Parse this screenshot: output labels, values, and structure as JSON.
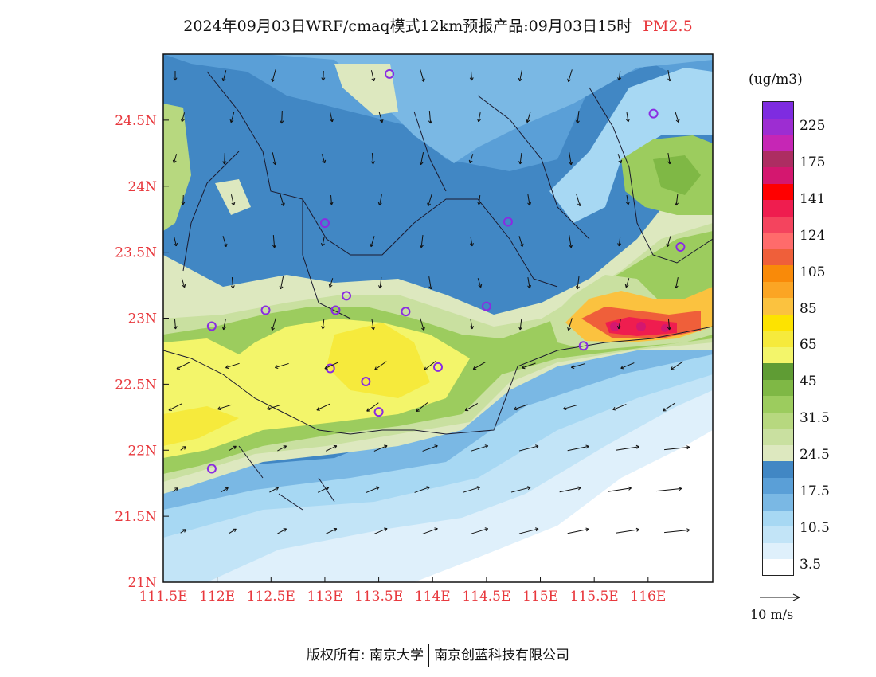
{
  "title": {
    "text": "2024年09月03日WRF/cmaq模式12km预报产品:09月03日15时",
    "species": "PM2.5"
  },
  "map": {
    "lon_range": [
      111.5,
      116.6
    ],
    "lat_range": [
      21.0,
      25.0
    ],
    "x_ticks": [
      "111.5E",
      "112E",
      "112.5E",
      "113E",
      "113.5E",
      "114E",
      "114.5E",
      "115E",
      "115.5E",
      "116E"
    ],
    "y_ticks": [
      "21N",
      "21.5N",
      "22N",
      "22.5N",
      "23N",
      "23.5N",
      "24N",
      "24.5N"
    ],
    "tick_color": "#e8383d",
    "stations": [
      {
        "lon": 113.6,
        "lat": 24.85
      },
      {
        "lon": 116.05,
        "lat": 24.55
      },
      {
        "lon": 113.0,
        "lat": 23.72
      },
      {
        "lon": 114.7,
        "lat": 23.73
      },
      {
        "lon": 116.3,
        "lat": 23.54
      },
      {
        "lon": 113.2,
        "lat": 23.17
      },
      {
        "lon": 112.45,
        "lat": 23.06
      },
      {
        "lon": 113.1,
        "lat": 23.06
      },
      {
        "lon": 113.75,
        "lat": 23.05
      },
      {
        "lon": 114.5,
        "lat": 23.09
      },
      {
        "lon": 111.95,
        "lat": 22.94
      },
      {
        "lon": 115.4,
        "lat": 22.79
      },
      {
        "lon": 113.05,
        "lat": 22.62
      },
      {
        "lon": 113.38,
        "lat": 22.52
      },
      {
        "lon": 114.05,
        "lat": 22.63
      },
      {
        "lon": 113.5,
        "lat": 22.29
      },
      {
        "lon": 111.95,
        "lat": 21.86
      }
    ]
  },
  "colorbar": {
    "unit": "(ug/m3)",
    "colors": [
      "#ffffff",
      "#dff0fb",
      "#c2e4f7",
      "#a7d8f3",
      "#7ab8e4",
      "#5a9fd7",
      "#4187c4",
      "#dde8bf",
      "#c9e0a0",
      "#b7d87f",
      "#9ccc5e",
      "#7fb845",
      "#5f9c34",
      "#f3f56a",
      "#f6ea3c",
      "#fde300",
      "#fbc23f",
      "#fba524",
      "#f98a09",
      "#ef5f3a",
      "#ff6b6b",
      "#f4445e",
      "#ef1d4f",
      "#ff0000",
      "#d4176f",
      "#ad2d62",
      "#c626b5",
      "#9d2dd2",
      "#7e2ce0"
    ],
    "labels": [
      "3.5",
      "10.5",
      "17.5",
      "24.5",
      "31.5",
      "45",
      "65",
      "85",
      "105",
      "124",
      "141",
      "175",
      "225"
    ]
  },
  "wind_key": {
    "label": "10 m/s"
  },
  "copyright": {
    "left": "版权所有: 南京大学",
    "right": "南京创蓝科技有限公司"
  }
}
